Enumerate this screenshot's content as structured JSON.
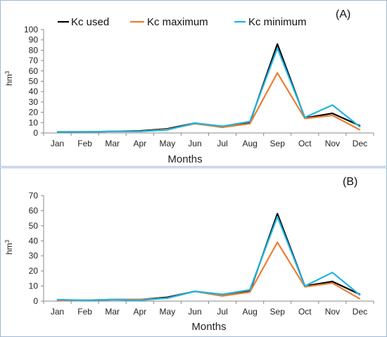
{
  "chart_data": [
    {
      "type": "line",
      "panel_label": "(A)",
      "xlabel": "Months",
      "ylabel": "hm",
      "ylabel_sup": "3",
      "ylim": [
        0,
        100
      ],
      "yticks": [
        0,
        10,
        20,
        30,
        40,
        50,
        60,
        70,
        80,
        90,
        100
      ],
      "categories": [
        "Jan",
        "Feb",
        "Mar",
        "Apr",
        "May",
        "Jun",
        "Jul",
        "Aug",
        "Sep",
        "Oct",
        "Nov",
        "Dec"
      ],
      "legend_position": "top",
      "series": [
        {
          "name": "Kc used",
          "color": "#000000",
          "values": [
            1,
            1,
            1.5,
            2,
            4,
            9.5,
            5.5,
            10,
            86,
            14.5,
            19,
            7
          ]
        },
        {
          "name": "Kc maximum",
          "color": "#ED7D31",
          "values": [
            1,
            1,
            1.5,
            1.5,
            3.5,
            9,
            5.5,
            9,
            58,
            14,
            17,
            3
          ]
        },
        {
          "name": "Kc minimum",
          "color": "#1FB5E0",
          "values": [
            1,
            1,
            1.5,
            1.5,
            3,
            9.5,
            6.5,
            11,
            82,
            15,
            27,
            6
          ]
        }
      ]
    },
    {
      "type": "line",
      "panel_label": "(B)",
      "xlabel": "Months",
      "ylabel": "hm",
      "ylabel_sup": "3",
      "ylim": [
        0,
        70
      ],
      "yticks": [
        0,
        10,
        20,
        30,
        40,
        50,
        60,
        70
      ],
      "categories": [
        "Jan",
        "Feb",
        "Mar",
        "Apr",
        "May",
        "Jun",
        "Jul",
        "Aug",
        "Sep",
        "Oct",
        "Nov",
        "Dec"
      ],
      "series": [
        {
          "name": "Kc used",
          "color": "#000000",
          "values": [
            0.5,
            0.5,
            1,
            1,
            2.5,
            6.5,
            3.5,
            6.5,
            58,
            10,
            13,
            4.5
          ]
        },
        {
          "name": "Kc maximum",
          "color": "#ED7D31",
          "values": [
            0.5,
            0.5,
            1,
            1,
            2,
            6.5,
            3.5,
            6,
            39,
            9.5,
            12,
            1.5
          ]
        },
        {
          "name": "Kc minimum",
          "color": "#1FB5E0",
          "values": [
            1,
            0.5,
            1,
            0.5,
            2,
            6.5,
            4.5,
            7.5,
            56,
            10,
            19,
            4
          ]
        }
      ]
    }
  ]
}
